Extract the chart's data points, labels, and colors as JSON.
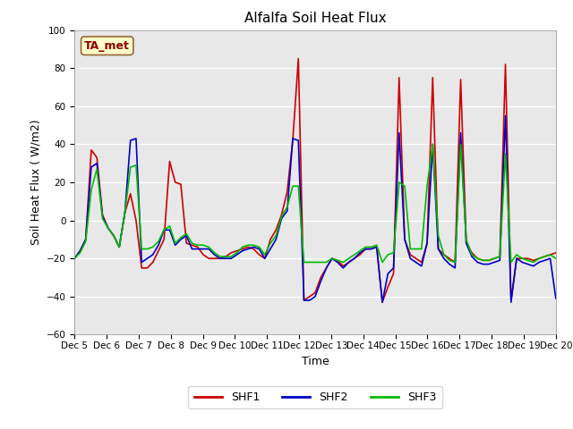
{
  "title": "Alfalfa Soil Heat Flux",
  "xlabel": "Time",
  "ylabel": "Soil Heat Flux ( W/m2)",
  "ylim": [
    -60,
    100
  ],
  "yticks": [
    -60,
    -40,
    -20,
    0,
    20,
    40,
    60,
    80,
    100
  ],
  "bg_color": "#e8e8e8",
  "annotation_text": "TA_met",
  "annotation_bg": "#ffffcc",
  "annotation_border": "#996633",
  "series": {
    "SHF1": {
      "color": "#cc0000",
      "lw": 1.2
    },
    "SHF2": {
      "color": "#0000cc",
      "lw": 1.2
    },
    "SHF3": {
      "color": "#00bb00",
      "lw": 1.2
    }
  },
  "xtick_labels": [
    "Dec 5",
    "Dec 6",
    "Dec 7",
    "Dec 8",
    "Dec 9",
    "Dec 10",
    "Dec 11",
    "Dec 12",
    "Dec 13",
    "Dec 14",
    "Dec 15",
    "Dec 16",
    "Dec 17",
    "Dec 18",
    "Dec 19",
    "Dec 20"
  ],
  "shf1": [
    -20,
    -16,
    -10,
    37,
    33,
    3,
    -4,
    -8,
    -14,
    4,
    14,
    0,
    -25,
    -25,
    -22,
    -16,
    -10,
    31,
    20,
    19,
    -12,
    -13,
    -14,
    -18,
    -20,
    -20,
    -20,
    -19,
    -17,
    -16,
    -15,
    -14,
    -15,
    -18,
    -20,
    -10,
    -5,
    3,
    15,
    42,
    85,
    -42,
    -40,
    -38,
    -30,
    -25,
    -20,
    -21,
    -24,
    -22,
    -20,
    -18,
    -15,
    -15,
    -14,
    -43,
    -35,
    -28,
    75,
    -10,
    -18,
    -20,
    -22,
    -12,
    75,
    -15,
    -18,
    -20,
    -22,
    74,
    -12,
    -17,
    -20,
    -21,
    -21,
    -20,
    -19,
    82,
    -42,
    -20,
    -20,
    -20,
    -21,
    -20,
    -19,
    -18,
    -17
  ],
  "shf2": [
    -20,
    -16,
    -10,
    28,
    30,
    2,
    -4,
    -8,
    -14,
    4,
    42,
    43,
    -22,
    -20,
    -18,
    -13,
    -5,
    -5,
    -13,
    -10,
    -8,
    -15,
    -15,
    -15,
    -15,
    -18,
    -20,
    -20,
    -20,
    -18,
    -16,
    -15,
    -14,
    -15,
    -20,
    -15,
    -10,
    1,
    5,
    43,
    42,
    -42,
    -42,
    -40,
    -32,
    -25,
    -20,
    -22,
    -25,
    -22,
    -20,
    -17,
    -15,
    -15,
    -14,
    -43,
    -28,
    -25,
    46,
    -10,
    -20,
    -22,
    -24,
    -12,
    40,
    -15,
    -20,
    -23,
    -25,
    46,
    -12,
    -19,
    -22,
    -23,
    -23,
    -22,
    -21,
    55,
    -43,
    -20,
    -22,
    -23,
    -24,
    -22,
    -21,
    -20,
    -41
  ],
  "shf3": [
    -20,
    -17,
    -11,
    16,
    27,
    1,
    -4,
    -8,
    -14,
    4,
    28,
    29,
    -15,
    -15,
    -14,
    -11,
    -5,
    -3,
    -12,
    -9,
    -7,
    -12,
    -13,
    -13,
    -14,
    -17,
    -19,
    -19,
    -19,
    -17,
    -14,
    -13,
    -13,
    -14,
    -18,
    -12,
    -8,
    2,
    7,
    18,
    18,
    -22,
    -22,
    -22,
    -22,
    -22,
    -20,
    -21,
    -22,
    -20,
    -18,
    -16,
    -14,
    -14,
    -13,
    -22,
    -18,
    -17,
    20,
    18,
    -15,
    -15,
    -15,
    18,
    40,
    -8,
    -18,
    -21,
    -22,
    40,
    -10,
    -18,
    -20,
    -21,
    -21,
    -20,
    -19,
    35,
    -22,
    -18,
    -20,
    -21,
    -22,
    -20,
    -19,
    -18,
    -20
  ]
}
